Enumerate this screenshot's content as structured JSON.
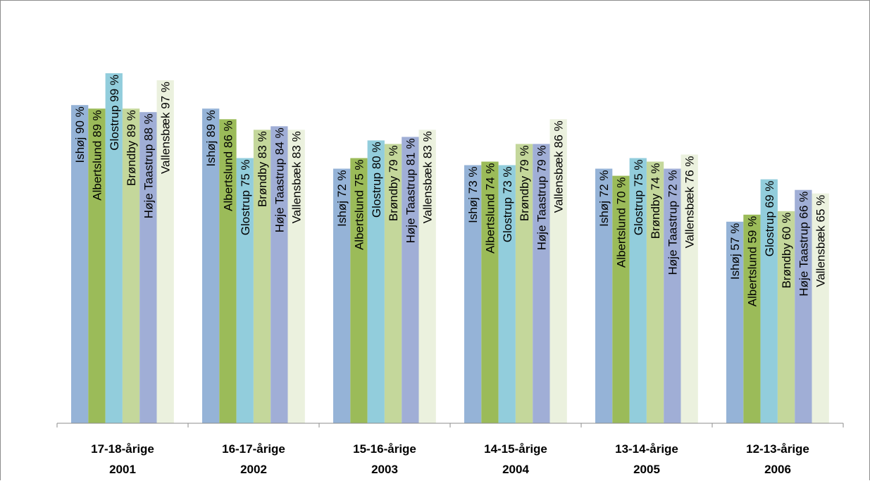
{
  "chart_data": {
    "type": "bar",
    "title": "",
    "xlabel": "",
    "ylabel": "",
    "ylim": [
      0,
      100
    ],
    "grid": false,
    "legend": "none",
    "categories": [
      {
        "line1": "17-18-årige",
        "line2": "2001"
      },
      {
        "line1": "16-17-årige",
        "line2": "2002"
      },
      {
        "line1": "15-16-årige",
        "line2": "2003"
      },
      {
        "line1": "14-15-årige",
        "line2": "2004"
      },
      {
        "line1": "13-14-årige",
        "line2": "2005"
      },
      {
        "line1": "12-13-årige",
        "line2": "2006"
      }
    ],
    "series": [
      {
        "name": "Ishøj",
        "color": "#95b3d7",
        "values": [
          90,
          89,
          72,
          73,
          72,
          57
        ],
        "labels": [
          "Ishøj  90 %",
          "Ishøj  89 %",
          "Ishøj  72 %",
          "Ishøj  73 %",
          "Ishøj  72 %",
          "Ishøj  57 %"
        ]
      },
      {
        "name": "Albertslund",
        "color": "#9bbb59",
        "values": [
          89,
          86,
          75,
          74,
          70,
          59
        ],
        "labels": [
          "Albertslund  89 %",
          "Albertslund  86 %",
          "Albertslund  75 %",
          "Albertslund  74 %",
          "Albertslund  70 %",
          "Albertslund  59 %"
        ]
      },
      {
        "name": "Glostrup",
        "color": "#92cddc",
        "values": [
          99,
          75,
          80,
          73,
          75,
          69
        ],
        "labels": [
          "Glostrup  99 %",
          "Glostrup  75 %",
          "Glostrup  80 %",
          "Glostrup  73 %",
          "Glostrup  75 %",
          "Glostrup  69 %"
        ]
      },
      {
        "name": "Brøndby",
        "color": "#c4d79b",
        "values": [
          89,
          83,
          79,
          79,
          74,
          60
        ],
        "labels": [
          "Brøndby  89 %",
          "Brøndby  83 %",
          "Brøndby  79 %",
          "Brøndby  79 %",
          "Brøndby  74 %",
          "Brøndby  60 %"
        ]
      },
      {
        "name": "Høje Taastrup",
        "color": "#a0aed6",
        "values": [
          88,
          84,
          81,
          79,
          72,
          66
        ],
        "labels": [
          "Høje Taastrup  88 %",
          "Høje Taastrup  84 %",
          "Høje Taastrup  81 %",
          "Høje Taastrup  79 %",
          "Høje Taastrup  72 %",
          "Høje Taastrup  66 %"
        ]
      },
      {
        "name": "Vallensbæk",
        "color": "#ebf1de",
        "values": [
          97,
          83,
          83,
          86,
          76,
          65
        ],
        "labels": [
          "Vallensbæk  97 %",
          "Vallensbæk  83 %",
          "Vallensbæk  83 %",
          "Vallensbæk  86 %",
          "Vallensbæk  76 %",
          "Vallensbæk  65 %"
        ]
      }
    ]
  }
}
